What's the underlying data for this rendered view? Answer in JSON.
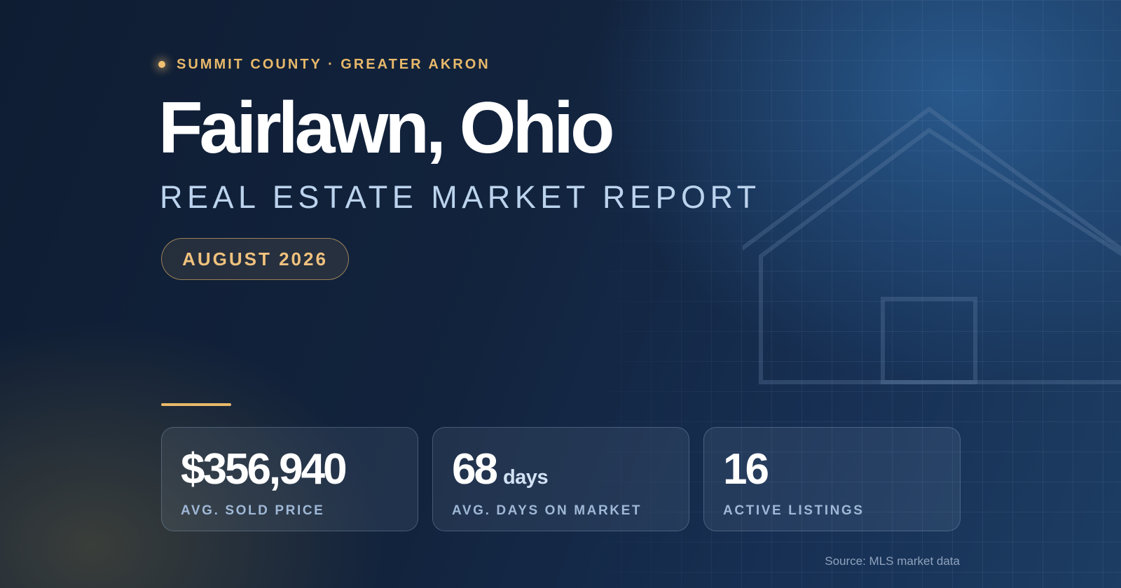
{
  "header": {
    "eyebrow": "SUMMIT COUNTY · GREATER AKRON",
    "title": "Fairlawn, Ohio",
    "subtitle": "REAL ESTATE MARKET REPORT",
    "period": "AUGUST 2026"
  },
  "stats": [
    {
      "value": "$356,940",
      "unit": "",
      "label": "AVG. SOLD PRICE"
    },
    {
      "value": "68",
      "unit": "days",
      "label": "AVG. DAYS ON MARKET"
    },
    {
      "value": "16",
      "unit": "",
      "label": "ACTIVE LISTINGS"
    }
  ],
  "footer": {
    "source": "Source: MLS market data"
  },
  "colors": {
    "accent": "#e8b96a",
    "background": "#12213a",
    "subtitle": "#bcd3ee"
  },
  "icons": {
    "hero": "house-outline-icon",
    "bullet": "dot-icon"
  }
}
